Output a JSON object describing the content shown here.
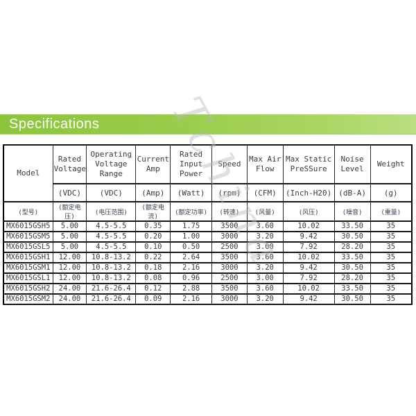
{
  "banner": {
    "title": "Specifications"
  },
  "watermark": {
    "text": "Tchina"
  },
  "table": {
    "columns": [
      {
        "en": "Model",
        "unit": "",
        "cn": "(型号)"
      },
      {
        "en": "Rated Voltage",
        "unit": "(VDC)",
        "cn": "(额定电压)"
      },
      {
        "en": "Operating Voltage Range",
        "unit": "(VDC)",
        "cn": "(电压范围)"
      },
      {
        "en": "Current Amp",
        "unit": "(Amp)",
        "cn": "(额定电流)"
      },
      {
        "en": "Rated Input Power",
        "unit": "(Watt)",
        "cn": "(额定功率)"
      },
      {
        "en": "Speed",
        "unit": "(rpm)",
        "cn": "(转速)"
      },
      {
        "en": "Max Air Flow",
        "unit": "(CFM)",
        "cn": "(风量)"
      },
      {
        "en": "Max Static PreSSure",
        "unit": "(Inch-H20)",
        "cn": "(风压)"
      },
      {
        "en": "Noise Level",
        "unit": "(dB-A)",
        "cn": "(噪音)"
      },
      {
        "en": "Weight",
        "unit": "(g)",
        "cn": "(重量)"
      }
    ],
    "rows": [
      [
        "MX6015GSH5",
        "5.00",
        "4.5-5.5",
        "0.35",
        "1.75",
        "3500",
        "3.60",
        "10.02",
        "33.50",
        "35"
      ],
      [
        "MX6015GSM5",
        "5.00",
        "4.5-5.5",
        "0.20",
        "1.00",
        "3000",
        "3.20",
        "9.42",
        "30.50",
        "35"
      ],
      [
        "MX6015GSL5",
        "5.00",
        "4.5-5.5",
        "0.10",
        "0.50",
        "2500",
        "3.00",
        "7.92",
        "28.20",
        "35"
      ],
      [
        "MX6015GSH1",
        "12.00",
        "10.8-13.2",
        "0.22",
        "2.64",
        "3500",
        "3.60",
        "10.02",
        "33.50",
        "35"
      ],
      [
        "MX6015GSM1",
        "12.00",
        "10.8-13.2",
        "0.18",
        "2.16",
        "3000",
        "3.20",
        "9.42",
        "30.50",
        "35"
      ],
      [
        "MX6015GSL1",
        "12.00",
        "10.8-13.2",
        "0.08",
        "0.96",
        "2500",
        "3.00",
        "7.92",
        "28.20",
        "35"
      ],
      [
        "MX6015GSH2",
        "24.00",
        "21.6-26.4",
        "0.12",
        "2.88",
        "3500",
        "3.60",
        "10.02",
        "33.50",
        "35"
      ],
      [
        "MX6015GSM2",
        "24.00",
        "21.6-26.4",
        "0.09",
        "2.16",
        "3000",
        "3.20",
        "9.42",
        "30.50",
        "35"
      ]
    ]
  }
}
